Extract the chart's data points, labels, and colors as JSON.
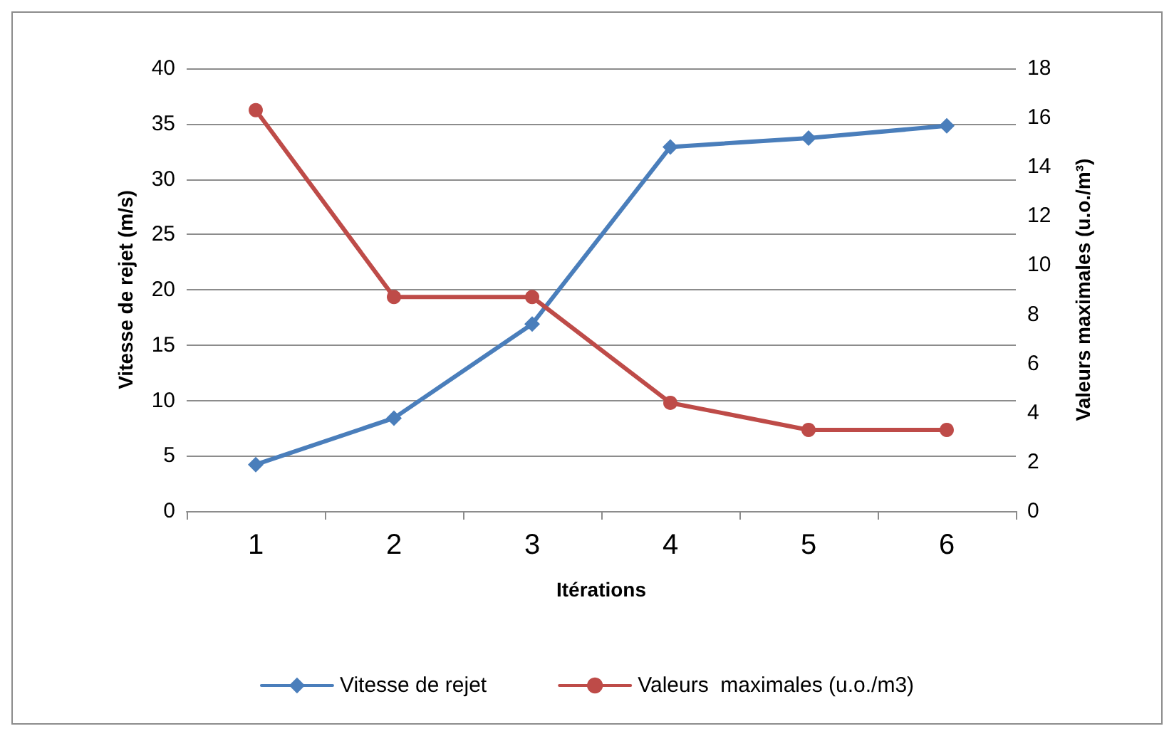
{
  "chart_data": {
    "type": "line",
    "xlabel": "Itérations",
    "ylabel": "Vitesse de rejet (m/s)",
    "y2label": "Valeurs maximales (u.o./m³)",
    "categories": [
      "1",
      "2",
      "3",
      "4",
      "5",
      "6"
    ],
    "series": [
      {
        "name": "Vitesse de rejet",
        "color": "#4a7ebb",
        "marker": "diamond",
        "values": [
          4.2,
          8.4,
          16.9,
          32.9,
          33.7,
          34.8
        ]
      },
      {
        "name": "Valeurs  maximales (u.o./m3)",
        "color": "#be4b48",
        "marker": "circle",
        "axis": "y2",
        "values": [
          16.3,
          8.7,
          8.7,
          4.4,
          3.3,
          3.3
        ]
      }
    ],
    "ylim": [
      0,
      40
    ],
    "yticks": [
      0,
      5,
      10,
      15,
      20,
      25,
      30,
      35,
      40
    ],
    "y2lim": [
      0,
      18
    ],
    "y2ticks": [
      0,
      2,
      4,
      6,
      8,
      10,
      12,
      14,
      16,
      18
    ],
    "grid": "y",
    "legend": "bottom",
    "line_style": "solid"
  }
}
